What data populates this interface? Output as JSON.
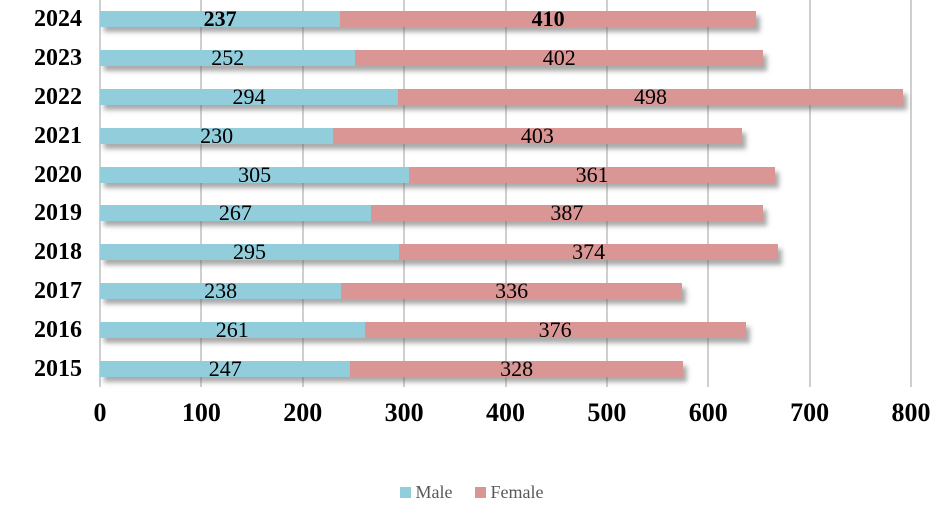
{
  "chart_data": {
    "type": "bar",
    "variant": "horizontal-stacked",
    "title": "",
    "xlabel": "",
    "ylabel": "",
    "categories": [
      "2024",
      "2023",
      "2022",
      "2021",
      "2020",
      "2019",
      "2018",
      "2017",
      "2016",
      "2015"
    ],
    "series": [
      {
        "name": "Male",
        "color": "#92CDDC",
        "values": [
          237,
          252,
          294,
          230,
          305,
          267,
          295,
          238,
          261,
          247
        ]
      },
      {
        "name": "Female",
        "color": "#D99694",
        "values": [
          410,
          402,
          498,
          403,
          361,
          387,
          374,
          336,
          376,
          328
        ]
      }
    ],
    "xlim": [
      0,
      800
    ],
    "xticks": [
      0,
      100,
      200,
      300,
      400,
      500,
      600,
      700,
      800
    ],
    "grid": "vertical",
    "gridline_color": "#cfcfcf",
    "highlight_category": "2024",
    "data_labels": "inside-center",
    "legend_position": "bottom-center",
    "legend_text_color": "#595959"
  }
}
